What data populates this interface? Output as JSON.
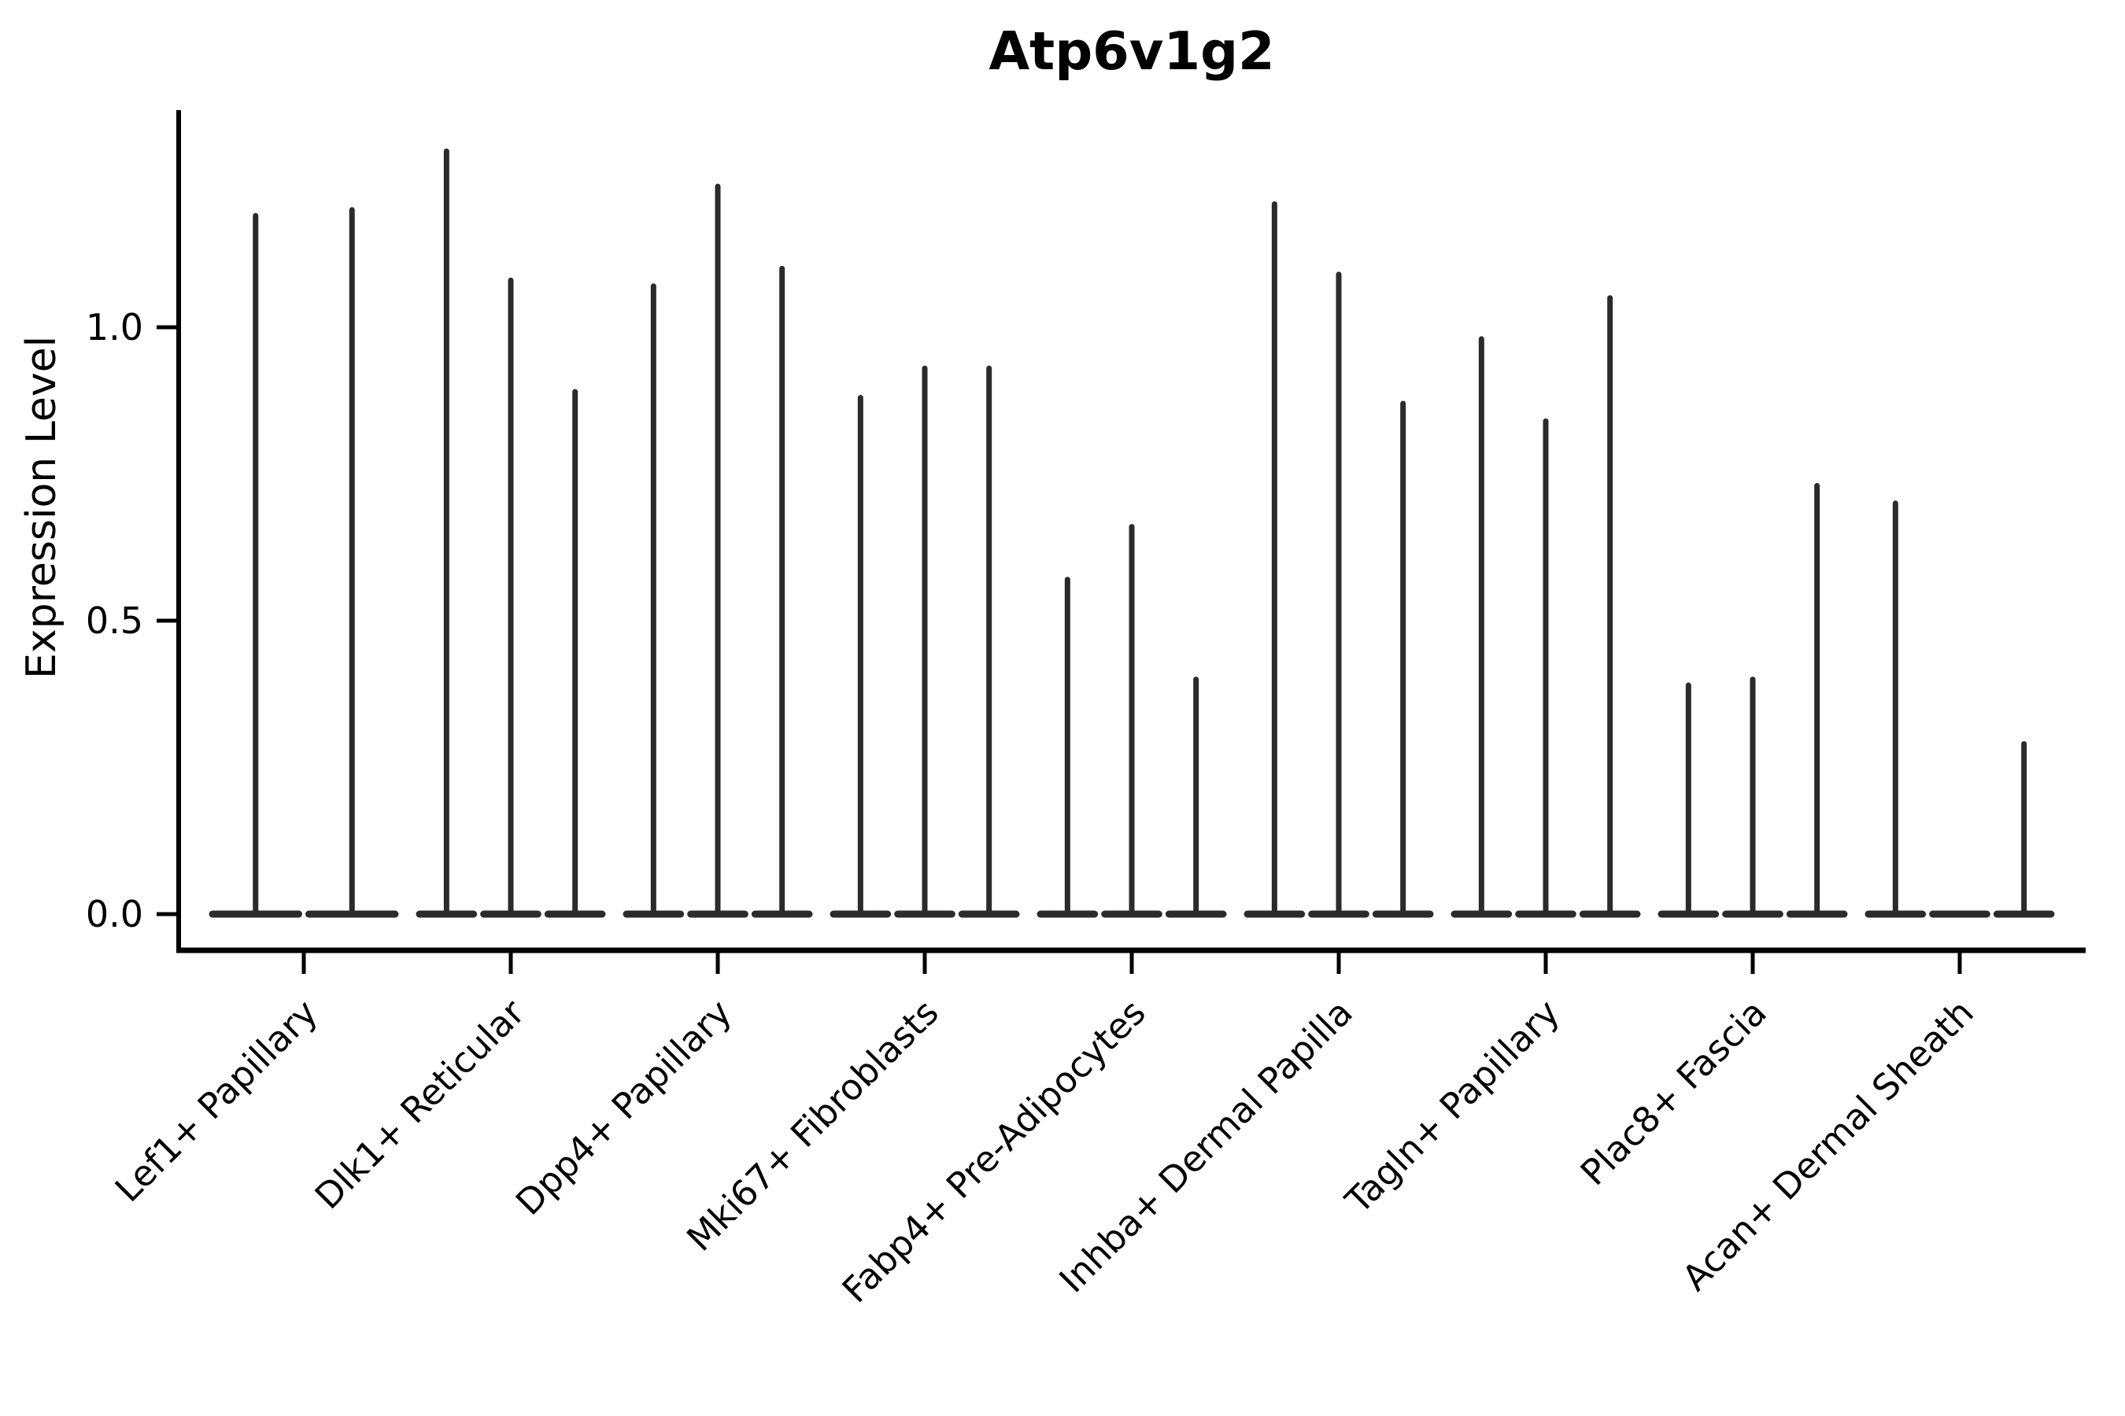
{
  "chart_data": {
    "type": "violin",
    "title": "Atp6v1g2",
    "xlabel": "",
    "ylabel": "Expression Level",
    "yticks": [
      {
        "label": "0.0",
        "value": 0.0
      },
      {
        "label": "0.5",
        "value": 0.5
      },
      {
        "label": "1.0",
        "value": 1.0
      }
    ],
    "ylim": [
      -0.065,
      1.37
    ],
    "grid": false,
    "legend": "none",
    "x_tick_label_rotation_deg": 45,
    "categories": [
      {
        "label": "Lef1+ Papillary",
        "violin_max_values": [
          1.19,
          1.2
        ]
      },
      {
        "label": "Dlk1+ Reticular",
        "violin_max_values": [
          1.3,
          1.08,
          0.89
        ]
      },
      {
        "label": "Dpp4+ Papillary",
        "violin_max_values": [
          1.07,
          1.24,
          1.1
        ]
      },
      {
        "label": "Mki67+ Fibroblasts",
        "violin_max_values": [
          0.88,
          0.93,
          0.93
        ]
      },
      {
        "label": "Fabp4+ Pre-Adipocytes",
        "violin_max_values": [
          0.57,
          0.66,
          0.4
        ]
      },
      {
        "label": "Inhba+ Dermal Papilla",
        "violin_max_values": [
          1.21,
          1.09,
          0.87
        ]
      },
      {
        "label": "Tagln+ Papillary",
        "violin_max_values": [
          0.98,
          0.84,
          1.05
        ]
      },
      {
        "label": "Plac8+ Fascia",
        "violin_max_values": [
          0.39,
          0.4,
          0.73
        ]
      },
      {
        "label": "Acan+ Dermal Sheath",
        "violin_max_values": [
          0.7,
          0.0,
          0.29
        ]
      }
    ],
    "colors": {
      "violin": "#2b2b2b",
      "axis": "#000000",
      "text": "#000000",
      "background": "#ffffff"
    }
  }
}
